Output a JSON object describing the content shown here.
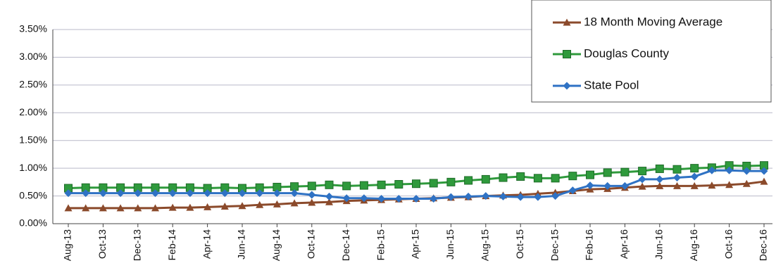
{
  "chart_data": {
    "type": "line",
    "categories": [
      "Aug-13",
      null,
      "Oct-13",
      null,
      "Dec-13",
      null,
      "Feb-14",
      null,
      "Apr-14",
      null,
      "Jun-14",
      null,
      "Aug-14",
      null,
      "Oct-14",
      null,
      "Dec-14",
      null,
      "Feb-15",
      null,
      "Apr-15",
      null,
      "Jun-15",
      null,
      "Aug-15",
      null,
      "Oct-15",
      null,
      "Dec-15",
      null,
      "Feb-16",
      null,
      "Apr-16",
      null,
      "Jun-16",
      null,
      "Aug-16",
      null,
      "Oct-16",
      null,
      "Dec-16"
    ],
    "series": [
      {
        "name": "18 Month Moving Average",
        "color": "#8b4a2b",
        "marker": "triangle",
        "values": [
          0.28,
          0.28,
          0.28,
          0.28,
          0.28,
          0.28,
          0.29,
          0.29,
          0.3,
          0.31,
          0.32,
          0.34,
          0.35,
          0.37,
          0.38,
          0.39,
          0.41,
          0.42,
          0.43,
          0.44,
          0.45,
          0.46,
          0.47,
          0.48,
          0.5,
          0.51,
          0.52,
          0.54,
          0.56,
          0.59,
          0.62,
          0.63,
          0.65,
          0.67,
          0.68,
          0.68,
          0.68,
          0.69,
          0.7,
          0.72,
          0.76
        ]
      },
      {
        "name": "Douglas County",
        "color": "#2f9a3c",
        "marker": "square",
        "values": [
          0.64,
          0.65,
          0.65,
          0.65,
          0.65,
          0.65,
          0.65,
          0.65,
          0.64,
          0.65,
          0.64,
          0.65,
          0.66,
          0.67,
          0.68,
          0.7,
          0.68,
          0.69,
          0.7,
          0.71,
          0.72,
          0.73,
          0.75,
          0.78,
          0.8,
          0.83,
          0.85,
          0.82,
          0.82,
          0.86,
          0.88,
          0.92,
          0.93,
          0.95,
          0.99,
          0.98,
          1.0,
          1.01,
          1.05,
          1.04,
          1.05
        ]
      },
      {
        "name": "State Pool",
        "color": "#2f72c4",
        "marker": "diamond",
        "values": [
          0.55,
          0.55,
          0.55,
          0.55,
          0.55,
          0.55,
          0.55,
          0.55,
          0.55,
          0.55,
          0.55,
          0.55,
          0.55,
          0.55,
          0.52,
          0.49,
          0.46,
          0.46,
          0.45,
          0.45,
          0.45,
          0.45,
          0.48,
          0.49,
          0.5,
          0.49,
          0.48,
          0.48,
          0.5,
          0.6,
          0.69,
          0.68,
          0.68,
          0.8,
          0.8,
          0.83,
          0.85,
          0.96,
          0.96,
          0.95,
          0.95
        ]
      }
    ],
    "ylim": [
      0,
      3.5
    ],
    "yticks": [
      {
        "value": 0,
        "label": "0.00%"
      },
      {
        "value": 0.5,
        "label": "0.50%"
      },
      {
        "value": 1,
        "label": "1.00%"
      },
      {
        "value": 1.5,
        "label": "1.50%"
      },
      {
        "value": 2,
        "label": "2.00%"
      },
      {
        "value": 2.5,
        "label": "2.50%"
      },
      {
        "value": 3,
        "label": "3.00%"
      },
      {
        "value": 3.5,
        "label": "3.50%"
      }
    ],
    "grid": true,
    "legend": "top-right"
  }
}
